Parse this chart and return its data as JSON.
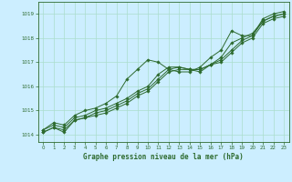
{
  "title": "Graphe pression niveau de la mer (hPa)",
  "background_color": "#cceeff",
  "grid_color": "#aaddcc",
  "line_color": "#2d6a2d",
  "xlim": [
    -0.5,
    23.5
  ],
  "ylim": [
    1013.7,
    1019.5
  ],
  "yticks": [
    1014,
    1015,
    1016,
    1017,
    1018,
    1019
  ],
  "xticks": [
    0,
    1,
    2,
    3,
    4,
    5,
    6,
    7,
    8,
    9,
    10,
    11,
    12,
    13,
    14,
    15,
    16,
    17,
    18,
    19,
    20,
    21,
    22,
    23
  ],
  "lines": [
    [
      1014.2,
      1014.5,
      1014.4,
      1014.8,
      1015.0,
      1015.1,
      1015.3,
      1015.6,
      1016.3,
      1016.7,
      1017.1,
      1017.0,
      1016.7,
      1016.6,
      1016.6,
      1016.8,
      1017.2,
      1017.5,
      1018.3,
      1018.1,
      1018.1,
      1018.8,
      1019.0,
      1019.1
    ],
    [
      1014.2,
      1014.4,
      1014.3,
      1014.7,
      1014.8,
      1015.0,
      1015.1,
      1015.3,
      1015.5,
      1015.8,
      1016.0,
      1016.5,
      1016.8,
      1016.8,
      1016.7,
      1016.6,
      1016.9,
      1017.2,
      1017.8,
      1018.0,
      1018.2,
      1018.7,
      1018.9,
      1019.0
    ],
    [
      1014.1,
      1014.3,
      1014.2,
      1014.6,
      1014.7,
      1014.9,
      1015.0,
      1015.2,
      1015.4,
      1015.7,
      1015.9,
      1016.3,
      1016.7,
      1016.8,
      1016.7,
      1016.7,
      1016.9,
      1017.1,
      1017.5,
      1017.9,
      1018.1,
      1018.7,
      1018.9,
      1019.0
    ],
    [
      1014.1,
      1014.3,
      1014.1,
      1014.6,
      1014.7,
      1014.8,
      1014.9,
      1015.1,
      1015.3,
      1015.6,
      1015.8,
      1016.2,
      1016.6,
      1016.7,
      1016.7,
      1016.7,
      1016.9,
      1017.0,
      1017.4,
      1017.8,
      1018.0,
      1018.6,
      1018.8,
      1018.9
    ]
  ]
}
